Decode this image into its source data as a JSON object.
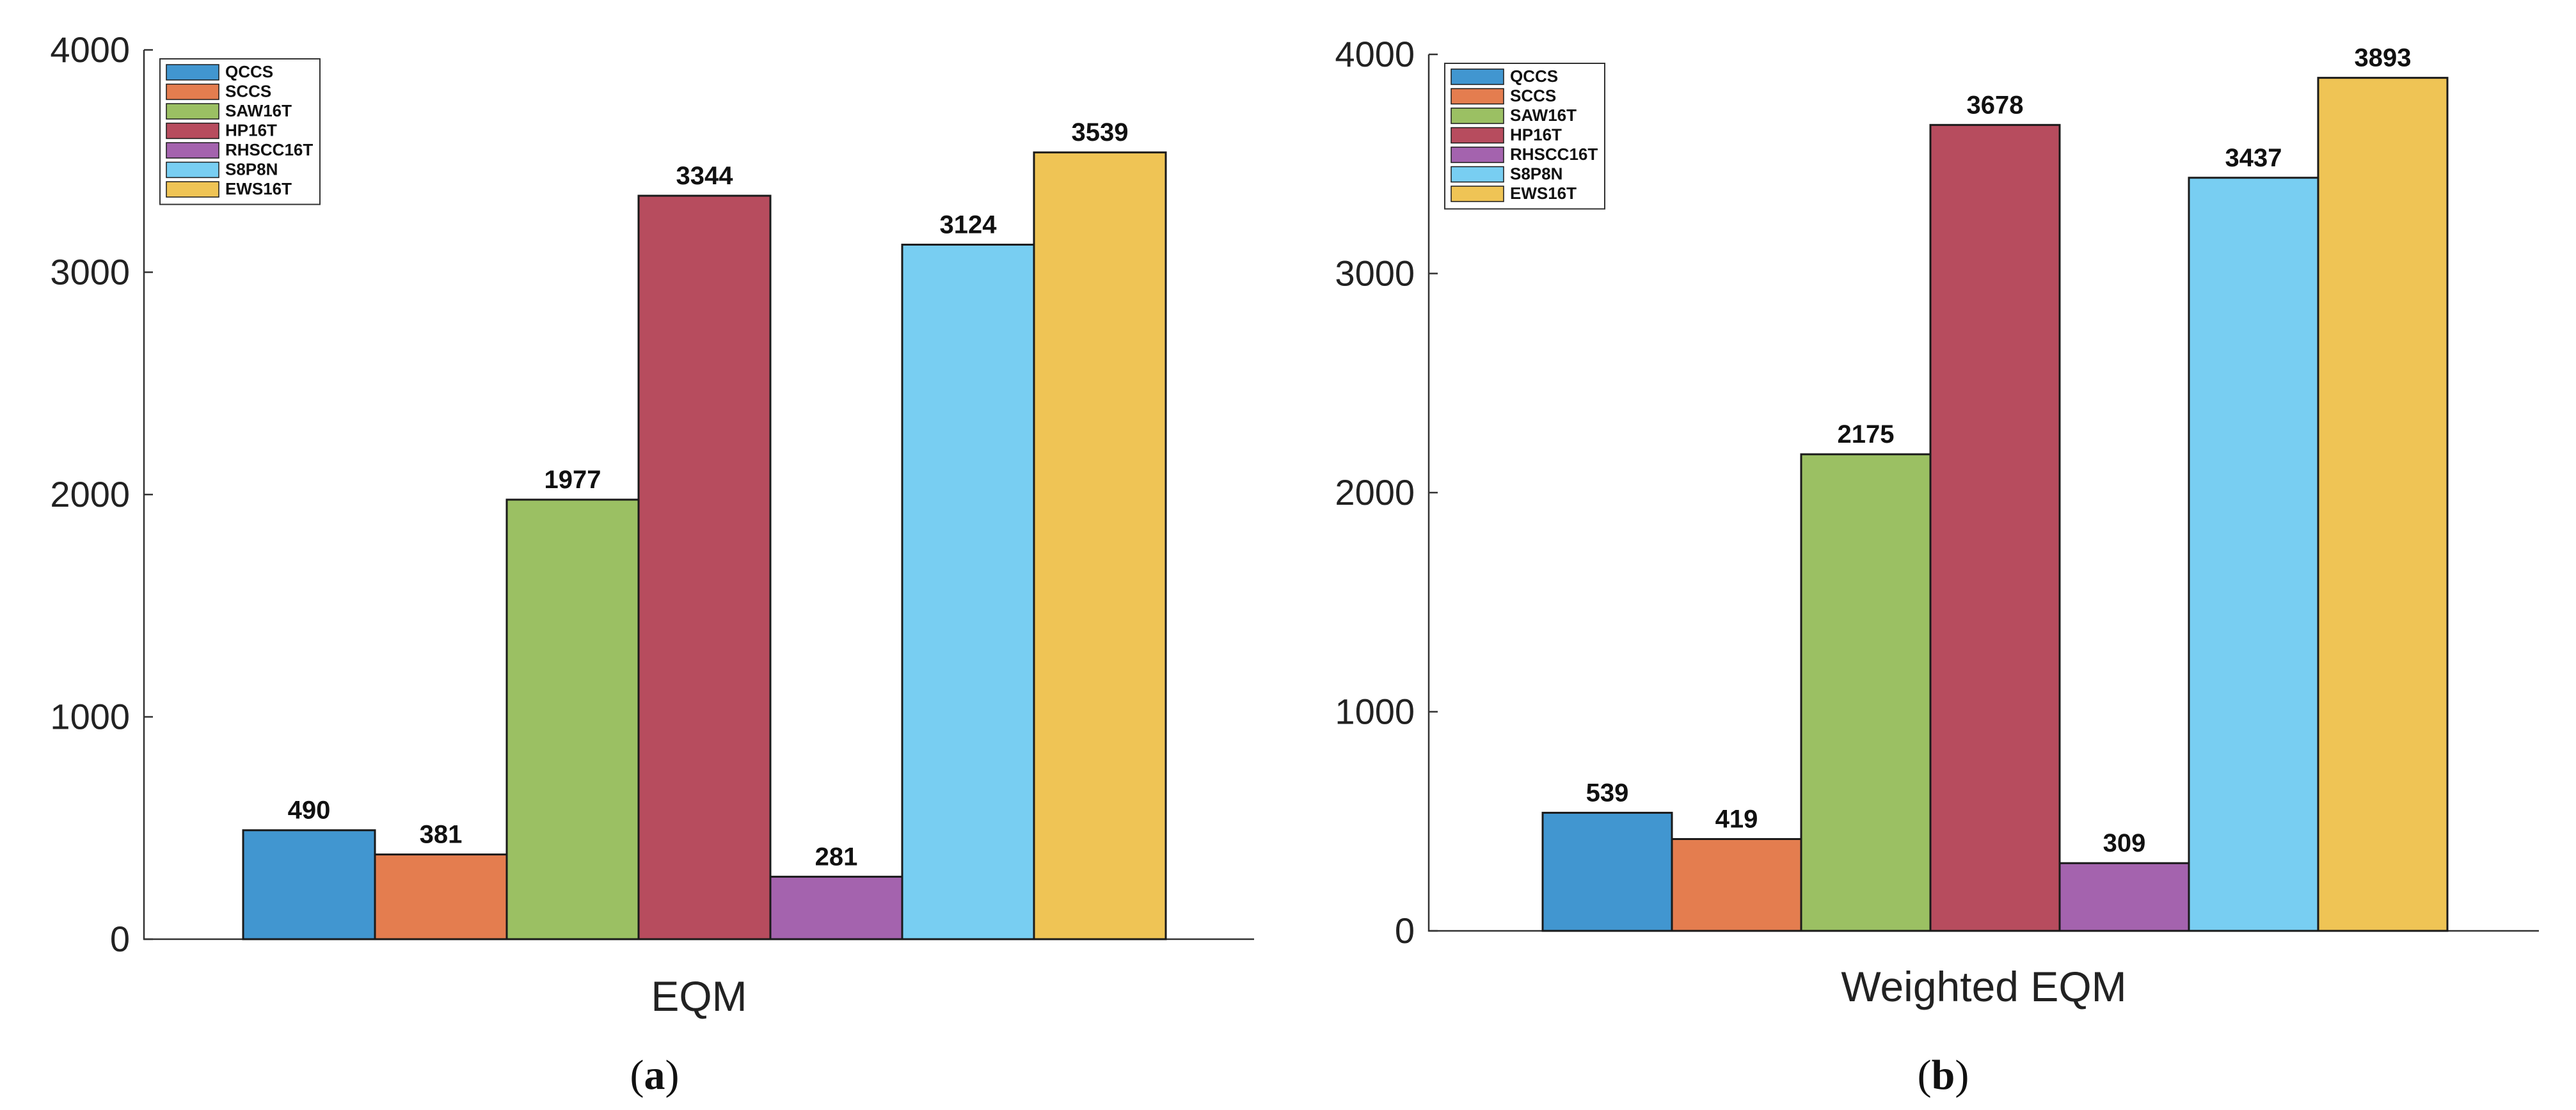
{
  "chart_data": [
    {
      "type": "bar",
      "subfigure_label": "(a)",
      "xlabel": "EQM",
      "ylabel": "",
      "title": "",
      "ylim": [
        0,
        4000
      ],
      "yticks": [
        0,
        1000,
        2000,
        3000,
        4000
      ],
      "grid": false,
      "legend_placement": "top-left",
      "series": [
        {
          "name": "QCCS",
          "value": 490,
          "color": "#4196D0"
        },
        {
          "name": "SCCS",
          "value": 381,
          "color": "#E47D4F"
        },
        {
          "name": "SAW16T",
          "value": 1977,
          "color": "#9BC063"
        },
        {
          "name": "HP16T",
          "value": 3344,
          "color": "#B74C5E"
        },
        {
          "name": "RHSCC16T",
          "value": 281,
          "color": "#A463AE"
        },
        {
          "name": "S8P8N",
          "value": 3124,
          "color": "#78CEF2"
        },
        {
          "name": "EWS16T",
          "value": 3539,
          "color": "#EFC455"
        }
      ]
    },
    {
      "type": "bar",
      "subfigure_label": "(b)",
      "xlabel": "Weighted EQM",
      "ylabel": "",
      "title": "",
      "ylim": [
        0,
        4000
      ],
      "yticks": [
        0,
        1000,
        2000,
        3000,
        4000
      ],
      "grid": false,
      "legend_placement": "top-left",
      "series": [
        {
          "name": "QCCS",
          "value": 539,
          "color": "#4196D0"
        },
        {
          "name": "SCCS",
          "value": 419,
          "color": "#E47D4F"
        },
        {
          "name": "SAW16T",
          "value": 2175,
          "color": "#9BC063"
        },
        {
          "name": "HP16T",
          "value": 3678,
          "color": "#B74C5E"
        },
        {
          "name": "RHSCC16T",
          "value": 309,
          "color": "#A463AE"
        },
        {
          "name": "S8P8N",
          "value": 3437,
          "color": "#78CEF2"
        },
        {
          "name": "EWS16T",
          "value": 3893,
          "color": "#EFC455"
        }
      ]
    }
  ]
}
